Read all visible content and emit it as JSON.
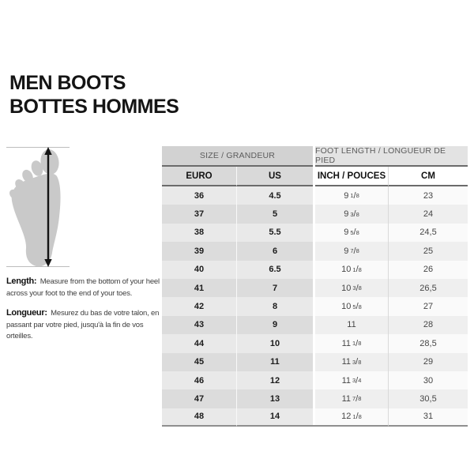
{
  "title": {
    "line1": "MEN BOOTS",
    "line2": "BOTTES HOMMES"
  },
  "diagram": {
    "description": "foot silhouette with vertical length measurement arrow"
  },
  "instructions": [
    {
      "label": "Length:",
      "text": "Measure from the bottom of your heel across your foot to the end of your toes."
    },
    {
      "label": "Longueur:",
      "text": "Mesurez du bas de votre talon, en passant par votre pied, jusqu'à la fin de vos orteilles."
    }
  ],
  "table": {
    "group_headers": [
      {
        "label": "SIZE / GRANDEUR"
      },
      {
        "label": "FOOT LENGTH / LONGUEUR DE PIED"
      }
    ],
    "columns": [
      "EURO",
      "US",
      "INCH / POUCES",
      "CM"
    ],
    "rows": [
      {
        "euro": "36",
        "us": "4.5",
        "inch": {
          "whole": "9",
          "num": "1",
          "den": "8"
        },
        "cm": "23"
      },
      {
        "euro": "37",
        "us": "5",
        "inch": {
          "whole": "9",
          "num": "3",
          "den": "8"
        },
        "cm": "24"
      },
      {
        "euro": "38",
        "us": "5.5",
        "inch": {
          "whole": "9",
          "num": "5",
          "den": "8"
        },
        "cm": "24,5"
      },
      {
        "euro": "39",
        "us": "6",
        "inch": {
          "whole": "9",
          "num": "7",
          "den": "8"
        },
        "cm": "25"
      },
      {
        "euro": "40",
        "us": "6.5",
        "inch": {
          "whole": "10",
          "num": "1",
          "den": "8"
        },
        "cm": "26"
      },
      {
        "euro": "41",
        "us": "7",
        "inch": {
          "whole": "10",
          "num": "3",
          "den": "8"
        },
        "cm": "26,5"
      },
      {
        "euro": "42",
        "us": "8",
        "inch": {
          "whole": "10",
          "num": "5",
          "den": "8"
        },
        "cm": "27"
      },
      {
        "euro": "43",
        "us": "9",
        "inch": {
          "whole": "11",
          "num": "",
          "den": ""
        },
        "cm": "28"
      },
      {
        "euro": "44",
        "us": "10",
        "inch": {
          "whole": "11",
          "num": "1",
          "den": "8"
        },
        "cm": "28,5"
      },
      {
        "euro": "45",
        "us": "11",
        "inch": {
          "whole": "11",
          "num": "3",
          "den": "8"
        },
        "cm": "29"
      },
      {
        "euro": "46",
        "us": "12",
        "inch": {
          "whole": "11",
          "num": "3",
          "den": "4"
        },
        "cm": "30"
      },
      {
        "euro": "47",
        "us": "13",
        "inch": {
          "whole": "11",
          "num": "7",
          "den": "8"
        },
        "cm": "30,5"
      },
      {
        "euro": "48",
        "us": "14",
        "inch": {
          "whole": "12",
          "num": "1",
          "den": "8"
        },
        "cm": "31"
      }
    ]
  },
  "colors": {
    "title_text": "#141414",
    "header_text": "#5c5c5c",
    "border_dark": "#6b6b6b",
    "table_bottom_border": "#8f8f8f",
    "group_header_left_bg": "#d2d2d2",
    "group_header_right_bg": "#e3e3e3",
    "col_header_left_bg": "#d9d9d9",
    "col_header_right_bg": "#ffffff",
    "row_left_odd_bg": "#e9e9e9",
    "row_left_even_bg": "#dcdcdc",
    "row_right_odd_bg": "#fafafa",
    "row_right_even_bg": "#efefef",
    "cell_text_bold": "#1c1c1c",
    "cell_text_regular": "#464646",
    "instruction_text": "#3d3d3d",
    "foot_fill": "#c9c9c9",
    "guide_line": "#bdbdbd"
  }
}
